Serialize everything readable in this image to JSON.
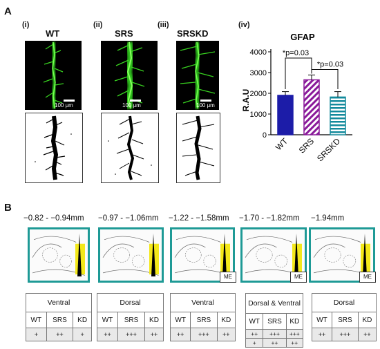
{
  "panelA": {
    "letter": "A",
    "subpanels": [
      "(i)",
      "(ii)",
      "(iii)",
      "(iv)"
    ],
    "conditions": [
      "WT",
      "SRS",
      "SRSKD"
    ],
    "scale_bar": "100 μm"
  },
  "chart_data": {
    "type": "bar",
    "title": "GFAP",
    "ylabel": "R.A.U",
    "categories": [
      "WT",
      "SRS",
      "SRSKD"
    ],
    "values": [
      1900,
      2650,
      1820
    ],
    "errors": [
      180,
      230,
      260
    ],
    "ylim": [
      0,
      4000
    ],
    "yticks": [
      0,
      1000,
      2000,
      3000,
      4000
    ],
    "bar_styles": [
      "solid-blue",
      "purple-diagonal-hatch",
      "teal-horizontal-stripes"
    ],
    "colors": {
      "WT": "#1c1ca8",
      "SRS": "#8a1a9a",
      "SRSKD": "#138a9c"
    },
    "annotations": [
      {
        "text": "*p=0.03",
        "between": [
          "WT",
          "SRS"
        ]
      },
      {
        "text": "*p=0.03",
        "between": [
          "SRS",
          "SRSKD"
        ]
      }
    ]
  },
  "panelB": {
    "letter": "B",
    "col_labels": [
      "WT",
      "SRS",
      "KD"
    ],
    "me_label": "ME",
    "sections": [
      {
        "coord": "−0.82 - −0.94mm",
        "region": "Ventral",
        "scores": [
          "+",
          "++",
          "+"
        ]
      },
      {
        "coord": "−0.97 - −1.06mm",
        "region": "Dorsal",
        "scores": [
          "++",
          "+++",
          "++"
        ]
      },
      {
        "coord": "−1.22 - −1.58mm",
        "region": "Ventral",
        "scores": [
          "++",
          "+++",
          "++"
        ]
      },
      {
        "coord": "−1.70 - −1.82mm",
        "region": "Dorsal & Ventral",
        "scores": [
          "++",
          "+++",
          "+++"
        ],
        "scores2": [
          "+",
          "++",
          "++"
        ]
      },
      {
        "coord": "−1.94mm",
        "region": "Dorsal",
        "scores": [
          "++",
          "+++",
          "++"
        ]
      }
    ]
  },
  "accent": "#1e9a96"
}
